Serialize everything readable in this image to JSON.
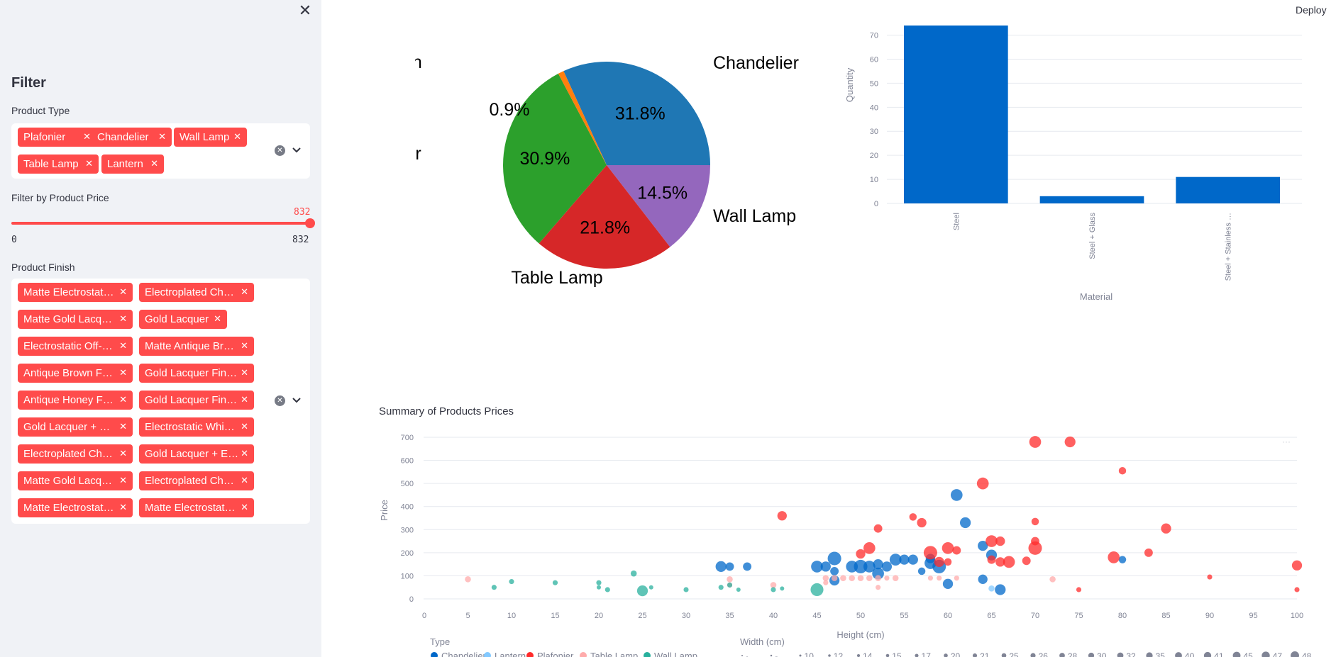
{
  "header": {
    "deploy_label": "Deploy"
  },
  "sidebar": {
    "close_glyph": "✕",
    "title": "Filter",
    "product_type": {
      "label": "Product Type",
      "tags": [
        "Plafonier",
        "Chandelier",
        "Wall Lamp",
        "Table Lamp",
        "Lantern"
      ]
    },
    "price": {
      "label": "Filter by Product Price",
      "current": "832",
      "min": "0",
      "max": "832"
    },
    "finish": {
      "label": "Product Finish",
      "tags": [
        "Matte Electrostat…",
        "Electroplated Ch…",
        "Matte Gold Lacq…",
        "Gold Lacquer",
        "Electrostatic Off-…",
        "Matte Antique Br…",
        "Antique Brown F…",
        "Gold Lacquer Fin…",
        "Antique Honey F…",
        "Gold Lacquer Fin…",
        "Gold Lacquer + …",
        "Electrostatic Whi…",
        "Electroplated Ch…",
        "Gold Lacquer + E…",
        "Matte Gold Lacq…",
        "Electroplated Ch…",
        "Matte Electrostat…",
        "Matte Electrostat…"
      ]
    },
    "tag_remove_glyph": "✕",
    "clear_glyph": "✕"
  },
  "colors": {
    "accent": "#ff4b4b",
    "chandelier": "#1f77b4",
    "lantern": "#ff7f0e",
    "plafonier": "#2ca02c",
    "table_lamp": "#d62728",
    "wall_lamp": "#9467bd",
    "bar": "#0068c9",
    "sc_chandelier": "#0068c9",
    "sc_lantern": "#83c9ff",
    "sc_plafonier": "#ff2b2b",
    "sc_table_lamp": "#ffabab",
    "sc_wall_lamp": "#29b09d"
  },
  "chart_data": [
    {
      "type": "pie",
      "title": "",
      "labels": [
        "Chandelier",
        "Wall Lamp",
        "Table Lamp",
        "Plafonier",
        "Lantern"
      ],
      "values": [
        31.8,
        14.5,
        21.8,
        30.9,
        0.9
      ],
      "value_labels": [
        "31.8%",
        "14.5%",
        "21.8%",
        "30.9%",
        "0.9%"
      ]
    },
    {
      "type": "bar",
      "title": "",
      "categories": [
        "Steel",
        "Steel + Glass",
        "Steel + Stainless …"
      ],
      "values": [
        74,
        3,
        11
      ],
      "xlabel": "Material",
      "ylabel": "Quantity",
      "ylim": [
        0,
        74
      ],
      "yticks": [
        0,
        10,
        20,
        30,
        40,
        50,
        60,
        70
      ]
    },
    {
      "type": "scatter",
      "title": "Summary of Products Prices",
      "xlabel": "Height (cm)",
      "ylabel": "Price",
      "xlim": [
        0,
        100
      ],
      "ylim": [
        -30,
        730
      ],
      "xticks": [
        0,
        5,
        10,
        15,
        20,
        25,
        30,
        35,
        40,
        45,
        50,
        55,
        60,
        65,
        70,
        75,
        80,
        85,
        90,
        95,
        100
      ],
      "yticks": [
        0,
        100,
        200,
        300,
        400,
        500,
        600,
        700
      ],
      "legend_type_title": "Type",
      "legend_size_title": "Width (cm)",
      "size_legend": [
        "·",
        "-",
        "10",
        "12",
        "14",
        "15",
        "17",
        "20",
        "21",
        "25",
        "26",
        "28",
        "30",
        "32",
        "35",
        "40",
        "41",
        "45",
        "47",
        "48"
      ],
      "menu_glyph": "···",
      "series": [
        {
          "name": "Chandelier",
          "points": [
            [
              34,
              140,
              32
            ],
            [
              35,
              140,
              25
            ],
            [
              37,
              140,
              25
            ],
            [
              45,
              140,
              35
            ],
            [
              46,
              140,
              30
            ],
            [
              47,
              175,
              40
            ],
            [
              47,
              120,
              25
            ],
            [
              47,
              80,
              30
            ],
            [
              49,
              140,
              35
            ],
            [
              50,
              140,
              40
            ],
            [
              51,
              140,
              35
            ],
            [
              52,
              150,
              30
            ],
            [
              52,
              110,
              35
            ],
            [
              53,
              140,
              30
            ],
            [
              54,
              170,
              35
            ],
            [
              55,
              170,
              30
            ],
            [
              56,
              170,
              30
            ],
            [
              57,
              120,
              22
            ],
            [
              58,
              155,
              35
            ],
            [
              58,
              175,
              28
            ],
            [
              59,
              140,
              40
            ],
            [
              60,
              65,
              30
            ],
            [
              61,
              450,
              35
            ],
            [
              62,
              330,
              32
            ],
            [
              64,
              85,
              28
            ],
            [
              64,
              230,
              30
            ],
            [
              65,
              190,
              32
            ],
            [
              66,
              40,
              32
            ],
            [
              80,
              170,
              22
            ]
          ]
        },
        {
          "name": "Lantern",
          "points": [
            [
              65,
              45,
              18
            ]
          ]
        },
        {
          "name": "Plafonier",
          "points": [
            [
              41,
              360,
              28
            ],
            [
              50,
              195,
              28
            ],
            [
              51,
              220,
              35
            ],
            [
              52,
              305,
              25
            ],
            [
              56,
              355,
              22
            ],
            [
              57,
              330,
              28
            ],
            [
              58,
              200,
              40
            ],
            [
              59,
              160,
              30
            ],
            [
              60,
              220,
              35
            ],
            [
              60,
              160,
              22
            ],
            [
              61,
              210,
              25
            ],
            [
              64,
              500,
              35
            ],
            [
              65,
              250,
              35
            ],
            [
              65,
              170,
              25
            ],
            [
              66,
              250,
              28
            ],
            [
              66,
              160,
              28
            ],
            [
              67,
              160,
              35
            ],
            [
              69,
              165,
              25
            ],
            [
              70,
              335,
              22
            ],
            [
              70,
              250,
              25
            ],
            [
              70,
              220,
              40
            ],
            [
              70,
              680,
              35
            ],
            [
              74,
              680,
              32
            ],
            [
              75,
              40,
              15
            ],
            [
              79,
              180,
              35
            ],
            [
              80,
              555,
              22
            ],
            [
              83,
              200,
              25
            ],
            [
              85,
              305,
              30
            ],
            [
              90,
              95,
              15
            ],
            [
              100,
              145,
              30
            ],
            [
              100,
              40,
              15
            ]
          ]
        },
        {
          "name": "Table Lamp",
          "points": [
            [
              5,
              85,
              18
            ],
            [
              35,
              85,
              18
            ],
            [
              35,
              60,
              15
            ],
            [
              40,
              60,
              18
            ],
            [
              46,
              90,
              18
            ],
            [
              46,
              70,
              15
            ],
            [
              47,
              90,
              18
            ],
            [
              48,
              90,
              18
            ],
            [
              49,
              90,
              18
            ],
            [
              50,
              90,
              18
            ],
            [
              51,
              90,
              18
            ],
            [
              52,
              90,
              18
            ],
            [
              52,
              50,
              15
            ],
            [
              53,
              90,
              15
            ],
            [
              54,
              90,
              18
            ],
            [
              58,
              90,
              15
            ],
            [
              59,
              90,
              15
            ],
            [
              61,
              90,
              15
            ],
            [
              72,
              85,
              18
            ]
          ]
        },
        {
          "name": "Wall Lamp",
          "points": [
            [
              8,
              50,
              15
            ],
            [
              10,
              75,
              15
            ],
            [
              15,
              70,
              15
            ],
            [
              20,
              70,
              15
            ],
            [
              20,
              50,
              12
            ],
            [
              21,
              40,
              15
            ],
            [
              24,
              110,
              18
            ],
            [
              25,
              35,
              32
            ],
            [
              26,
              50,
              12
            ],
            [
              30,
              40,
              15
            ],
            [
              34,
              50,
              15
            ],
            [
              35,
              60,
              15
            ],
            [
              36,
              40,
              10
            ],
            [
              40,
              40,
              15
            ],
            [
              41,
              45,
              12
            ],
            [
              45,
              40,
              38
            ]
          ]
        }
      ]
    }
  ]
}
